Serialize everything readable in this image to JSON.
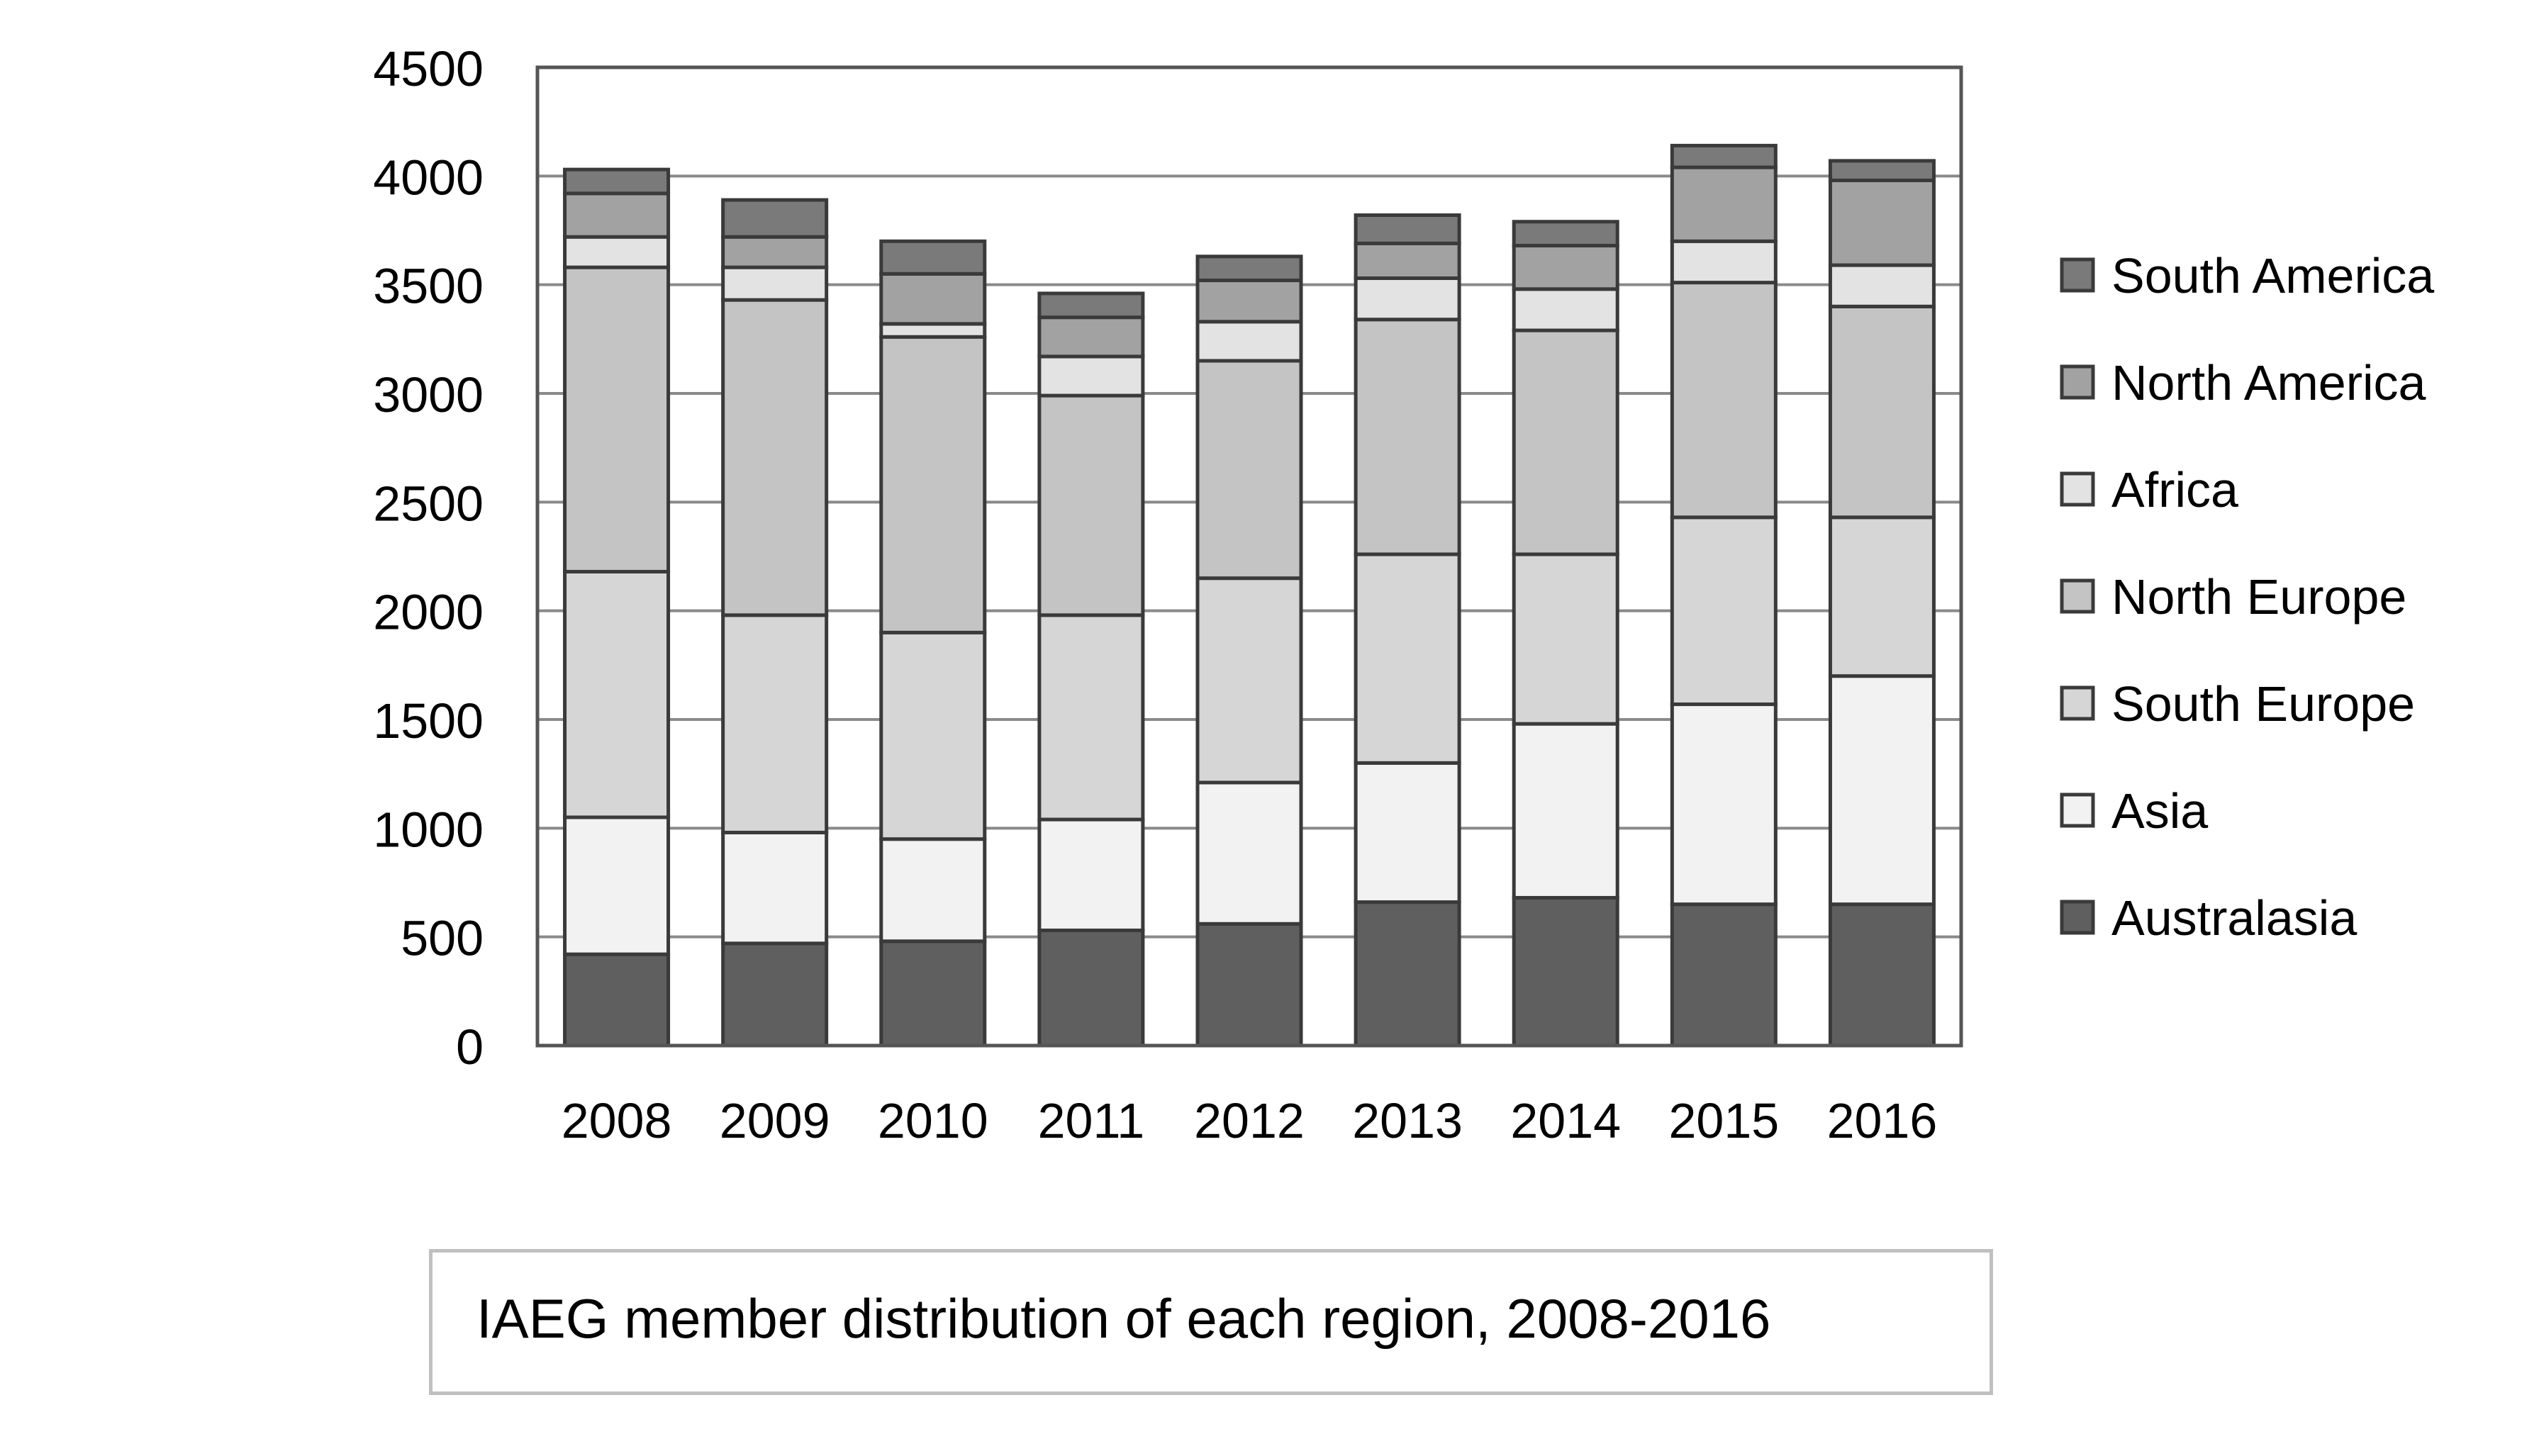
{
  "caption": "IAEG member distribution of each region, 2008-2016",
  "chart_data": {
    "type": "bar",
    "stacked": true,
    "categories": [
      "2008",
      "2009",
      "2010",
      "2011",
      "2012",
      "2013",
      "2014",
      "2015",
      "2016"
    ],
    "series": [
      {
        "name": "Australasia",
        "color": "#5f5f5f",
        "values": [
          420,
          470,
          480,
          530,
          560,
          660,
          680,
          650,
          650
        ]
      },
      {
        "name": "Asia",
        "color": "#f2f2f2",
        "values": [
          630,
          510,
          470,
          510,
          650,
          640,
          800,
          920,
          1050
        ]
      },
      {
        "name": "South Europe",
        "color": "#d6d6d6",
        "values": [
          1130,
          1000,
          950,
          940,
          940,
          960,
          780,
          860,
          730
        ]
      },
      {
        "name": "North Europe",
        "color": "#c4c4c4",
        "values": [
          1400,
          1450,
          1360,
          1010,
          1000,
          1080,
          1030,
          1080,
          970
        ]
      },
      {
        "name": "Africa",
        "color": "#e3e3e3",
        "values": [
          140,
          150,
          60,
          180,
          180,
          190,
          190,
          190,
          190
        ]
      },
      {
        "name": "North America",
        "color": "#a2a2a2",
        "values": [
          200,
          140,
          230,
          180,
          190,
          160,
          200,
          340,
          390
        ]
      },
      {
        "name": "South America",
        "color": "#7a7a7a",
        "values": [
          110,
          170,
          150,
          110,
          110,
          130,
          110,
          100,
          90
        ]
      }
    ],
    "title": "",
    "xlabel": "",
    "ylabel": "",
    "ylim": [
      0,
      4500
    ],
    "yticks": [
      0,
      500,
      1000,
      1500,
      2000,
      2500,
      3000,
      3500,
      4000,
      4500
    ],
    "grid": true,
    "legend": "right"
  }
}
